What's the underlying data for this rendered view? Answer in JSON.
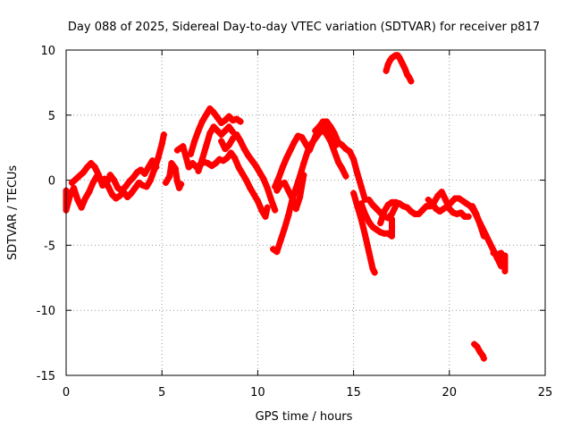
{
  "chart_data": {
    "type": "scatter",
    "title": "Day 088 of 2025, Sidereal Day-to-day VTEC variation (SDTVAR) for receiver p817",
    "xlabel": "GPS time / hours",
    "ylabel": "SDTVAR / TECUs",
    "xlim": [
      0,
      25
    ],
    "ylim": [
      -15,
      10
    ],
    "xticks": [
      0,
      5,
      10,
      15,
      20,
      25
    ],
    "yticks": [
      -15,
      -10,
      -5,
      0,
      5,
      10
    ],
    "grid": true,
    "marker": "+",
    "series": [
      {
        "name": "SDTVAR",
        "color": "#ff0000",
        "points": [
          [
            0.0,
            -0.8
          ],
          [
            0.0,
            -2.3
          ],
          [
            0.2,
            -1.2
          ],
          [
            0.4,
            -0.6
          ],
          [
            0.6,
            -1.5
          ],
          [
            0.8,
            -2.1
          ],
          [
            1.0,
            -1.4
          ],
          [
            1.2,
            -0.9
          ],
          [
            1.4,
            -0.2
          ],
          [
            1.6,
            0.3
          ],
          [
            1.8,
            0.0
          ],
          [
            2.0,
            0.1
          ],
          [
            2.2,
            -0.5
          ],
          [
            2.4,
            -1.1
          ],
          [
            2.6,
            -1.4
          ],
          [
            2.8,
            -1.2
          ],
          [
            3.0,
            -0.9
          ],
          [
            3.2,
            -1.3
          ],
          [
            3.4,
            -1.0
          ],
          [
            3.6,
            -0.6
          ],
          [
            3.8,
            -0.2
          ],
          [
            4.0,
            -0.4
          ],
          [
            4.2,
            -0.5
          ],
          [
            4.4,
            0.0
          ],
          [
            4.6,
            0.8
          ],
          [
            4.8,
            1.7
          ],
          [
            5.0,
            2.8
          ],
          [
            5.1,
            3.5
          ],
          [
            0.3,
            -0.2
          ],
          [
            0.6,
            0.2
          ],
          [
            0.9,
            0.6
          ],
          [
            1.1,
            1.0
          ],
          [
            1.3,
            1.3
          ],
          [
            1.5,
            1.0
          ],
          [
            1.7,
            0.4
          ],
          [
            1.9,
            -0.4
          ],
          [
            2.1,
            -0.3
          ],
          [
            2.3,
            0.4
          ],
          [
            2.5,
            0.0
          ],
          [
            2.7,
            -0.6
          ],
          [
            2.9,
            -0.8
          ],
          [
            3.1,
            -0.5
          ],
          [
            3.3,
            -0.1
          ],
          [
            3.5,
            0.2
          ],
          [
            3.7,
            0.6
          ],
          [
            3.9,
            0.8
          ],
          [
            4.1,
            0.5
          ],
          [
            4.3,
            1.0
          ],
          [
            4.5,
            1.5
          ],
          [
            4.7,
            1.0
          ],
          [
            5.2,
            -0.2
          ],
          [
            5.4,
            0.3
          ],
          [
            5.5,
            1.3
          ],
          [
            5.7,
            0.9
          ],
          [
            5.8,
            -0.1
          ],
          [
            5.9,
            -0.6
          ],
          [
            6.0,
            -0.3
          ],
          [
            5.8,
            2.3
          ],
          [
            6.1,
            2.6
          ],
          [
            6.4,
            1.0
          ],
          [
            6.6,
            1.3
          ],
          [
            6.8,
            1.0
          ],
          [
            7.0,
            1.2
          ],
          [
            7.2,
            1.4
          ],
          [
            7.4,
            1.3
          ],
          [
            7.6,
            1.1
          ],
          [
            7.8,
            1.3
          ],
          [
            8.0,
            1.6
          ],
          [
            8.2,
            1.5
          ],
          [
            8.4,
            1.7
          ],
          [
            8.6,
            2.1
          ],
          [
            8.8,
            1.7
          ],
          [
            9.0,
            1.0
          ],
          [
            9.2,
            0.5
          ],
          [
            9.4,
            0.0
          ],
          [
            9.6,
            -0.6
          ],
          [
            9.8,
            -1.1
          ],
          [
            10.0,
            -1.6
          ],
          [
            10.2,
            -2.3
          ],
          [
            10.4,
            -2.8
          ],
          [
            10.5,
            -2.1
          ],
          [
            6.5,
            2.0
          ],
          [
            6.7,
            3.0
          ],
          [
            6.9,
            3.8
          ],
          [
            7.1,
            4.5
          ],
          [
            7.3,
            5.0
          ],
          [
            7.5,
            5.5
          ],
          [
            7.7,
            5.2
          ],
          [
            7.9,
            4.8
          ],
          [
            8.1,
            4.4
          ],
          [
            8.3,
            4.6
          ],
          [
            8.5,
            4.9
          ],
          [
            8.7,
            4.6
          ],
          [
            8.9,
            4.7
          ],
          [
            9.1,
            4.5
          ],
          [
            6.9,
            0.7
          ],
          [
            7.1,
            1.6
          ],
          [
            7.3,
            2.6
          ],
          [
            7.5,
            3.6
          ],
          [
            7.7,
            4.1
          ],
          [
            7.9,
            3.8
          ],
          [
            8.1,
            3.5
          ],
          [
            8.3,
            3.8
          ],
          [
            8.5,
            4.1
          ],
          [
            8.7,
            3.7
          ],
          [
            8.1,
            3.0
          ],
          [
            8.3,
            2.4
          ],
          [
            8.5,
            2.7
          ],
          [
            8.7,
            3.2
          ],
          [
            8.9,
            3.5
          ],
          [
            9.1,
            3.0
          ],
          [
            9.3,
            2.4
          ],
          [
            9.5,
            1.9
          ],
          [
            9.7,
            1.5
          ],
          [
            9.9,
            1.1
          ],
          [
            10.1,
            0.6
          ],
          [
            10.3,
            0.1
          ],
          [
            10.5,
            -0.6
          ],
          [
            10.7,
            -1.5
          ],
          [
            10.9,
            -2.3
          ],
          [
            10.8,
            -5.3
          ],
          [
            11.0,
            -5.5
          ],
          [
            11.2,
            -4.6
          ],
          [
            11.4,
            -3.7
          ],
          [
            11.6,
            -2.7
          ],
          [
            11.8,
            -1.5
          ],
          [
            12.0,
            -0.6
          ],
          [
            12.2,
            0.3
          ],
          [
            12.4,
            1.3
          ],
          [
            12.6,
            2.2
          ],
          [
            12.8,
            2.8
          ],
          [
            13.0,
            3.2
          ],
          [
            13.2,
            3.6
          ],
          [
            13.4,
            3.9
          ],
          [
            13.6,
            3.5
          ],
          [
            13.8,
            3.0
          ],
          [
            14.0,
            2.2
          ],
          [
            14.2,
            1.4
          ],
          [
            14.4,
            0.9
          ],
          [
            14.6,
            0.3
          ],
          [
            11.0,
            -0.8
          ],
          [
            11.2,
            -0.3
          ],
          [
            11.4,
            -0.2
          ],
          [
            11.6,
            -0.8
          ],
          [
            11.8,
            -1.4
          ],
          [
            12.0,
            -2.2
          ],
          [
            12.2,
            -1.3
          ],
          [
            12.4,
            0.4
          ],
          [
            10.9,
            -0.5
          ],
          [
            11.1,
            0.2
          ],
          [
            11.3,
            1.0
          ],
          [
            11.5,
            1.7
          ],
          [
            11.7,
            2.3
          ],
          [
            11.9,
            2.9
          ],
          [
            12.1,
            3.4
          ],
          [
            12.3,
            3.3
          ],
          [
            12.5,
            2.8
          ],
          [
            12.7,
            2.3
          ],
          [
            12.9,
            3.0
          ],
          [
            13.1,
            3.7
          ],
          [
            13.3,
            4.2
          ],
          [
            13.5,
            4.3
          ],
          [
            13.7,
            4.0
          ],
          [
            13.9,
            3.3
          ],
          [
            14.1,
            2.7
          ],
          [
            13.0,
            3.8
          ],
          [
            13.2,
            4.1
          ],
          [
            13.4,
            4.5
          ],
          [
            13.6,
            4.5
          ],
          [
            13.8,
            4.1
          ],
          [
            14.0,
            3.6
          ],
          [
            14.2,
            2.9
          ],
          [
            14.4,
            2.7
          ],
          [
            14.6,
            2.4
          ],
          [
            14.8,
            2.2
          ],
          [
            15.0,
            1.6
          ],
          [
            15.2,
            0.5
          ],
          [
            15.4,
            -0.5
          ],
          [
            15.6,
            -1.5
          ],
          [
            15.0,
            -1.0
          ],
          [
            15.2,
            -2.0
          ],
          [
            15.4,
            -3.0
          ],
          [
            15.6,
            -4.2
          ],
          [
            15.8,
            -5.5
          ],
          [
            16.0,
            -6.8
          ],
          [
            16.1,
            -7.1
          ],
          [
            15.4,
            -1.8
          ],
          [
            15.6,
            -2.6
          ],
          [
            15.8,
            -3.2
          ],
          [
            16.0,
            -3.6
          ],
          [
            16.2,
            -3.8
          ],
          [
            16.4,
            -4.0
          ],
          [
            16.6,
            -4.1
          ],
          [
            16.8,
            -4.1
          ],
          [
            17.0,
            -4.3
          ],
          [
            17.0,
            -3.0
          ],
          [
            15.8,
            -1.5
          ],
          [
            16.0,
            -1.9
          ],
          [
            16.2,
            -2.2
          ],
          [
            16.4,
            -2.5
          ],
          [
            16.6,
            -2.8
          ],
          [
            16.8,
            -2.9
          ],
          [
            17.0,
            -2.6
          ],
          [
            17.2,
            -2.0
          ],
          [
            16.4,
            -3.3
          ],
          [
            16.6,
            -2.4
          ],
          [
            16.8,
            -1.9
          ],
          [
            17.0,
            -1.7
          ],
          [
            17.2,
            -1.7
          ],
          [
            17.4,
            -1.8
          ],
          [
            17.6,
            -2.0
          ],
          [
            17.8,
            -2.1
          ],
          [
            18.0,
            -2.4
          ],
          [
            18.2,
            -2.6
          ],
          [
            18.4,
            -2.6
          ],
          [
            18.6,
            -2.3
          ],
          [
            18.8,
            -2.0
          ],
          [
            19.0,
            -2.0
          ],
          [
            19.2,
            -1.7
          ],
          [
            19.4,
            -1.2
          ],
          [
            19.6,
            -0.9
          ],
          [
            19.8,
            -1.5
          ],
          [
            20.0,
            -2.2
          ],
          [
            20.2,
            -2.5
          ],
          [
            20.4,
            -2.6
          ],
          [
            20.6,
            -2.5
          ],
          [
            20.8,
            -2.8
          ],
          [
            21.0,
            -2.8
          ],
          [
            18.9,
            -1.5
          ],
          [
            19.1,
            -1.8
          ],
          [
            19.3,
            -2.2
          ],
          [
            19.5,
            -2.4
          ],
          [
            19.7,
            -2.2
          ],
          [
            19.9,
            -2.0
          ],
          [
            20.1,
            -1.7
          ],
          [
            20.3,
            -1.4
          ],
          [
            20.5,
            -1.4
          ],
          [
            20.7,
            -1.6
          ],
          [
            20.9,
            -1.8
          ],
          [
            21.1,
            -2.0
          ],
          [
            21.3,
            -2.4
          ],
          [
            21.5,
            -3.0
          ],
          [
            21.7,
            -3.6
          ],
          [
            21.9,
            -4.2
          ],
          [
            22.1,
            -4.8
          ],
          [
            22.3,
            -5.4
          ],
          [
            22.5,
            -6.0
          ],
          [
            22.7,
            -6.6
          ],
          [
            22.8,
            -6.6
          ],
          [
            22.9,
            -5.8
          ],
          [
            22.9,
            -7.0
          ],
          [
            21.2,
            -2.0
          ],
          [
            21.4,
            -2.6
          ],
          [
            21.6,
            -3.4
          ],
          [
            21.8,
            -4.3
          ],
          [
            22.3,
            -5.6
          ],
          [
            22.5,
            -5.7
          ],
          [
            22.7,
            -5.6
          ],
          [
            22.9,
            -6.4
          ],
          [
            16.7,
            8.4
          ],
          [
            16.8,
            8.9
          ],
          [
            16.9,
            9.2
          ],
          [
            17.0,
            9.4
          ],
          [
            17.1,
            9.5
          ],
          [
            17.2,
            9.6
          ],
          [
            17.3,
            9.6
          ],
          [
            17.4,
            9.4
          ],
          [
            17.5,
            9.1
          ],
          [
            17.6,
            8.8
          ],
          [
            17.7,
            8.5
          ],
          [
            17.8,
            8.1
          ],
          [
            17.9,
            7.9
          ],
          [
            18.0,
            7.6
          ],
          [
            21.3,
            -12.6
          ],
          [
            21.45,
            -12.8
          ],
          [
            21.6,
            -13.2
          ],
          [
            21.75,
            -13.5
          ],
          [
            21.8,
            -13.7
          ]
        ]
      }
    ]
  }
}
